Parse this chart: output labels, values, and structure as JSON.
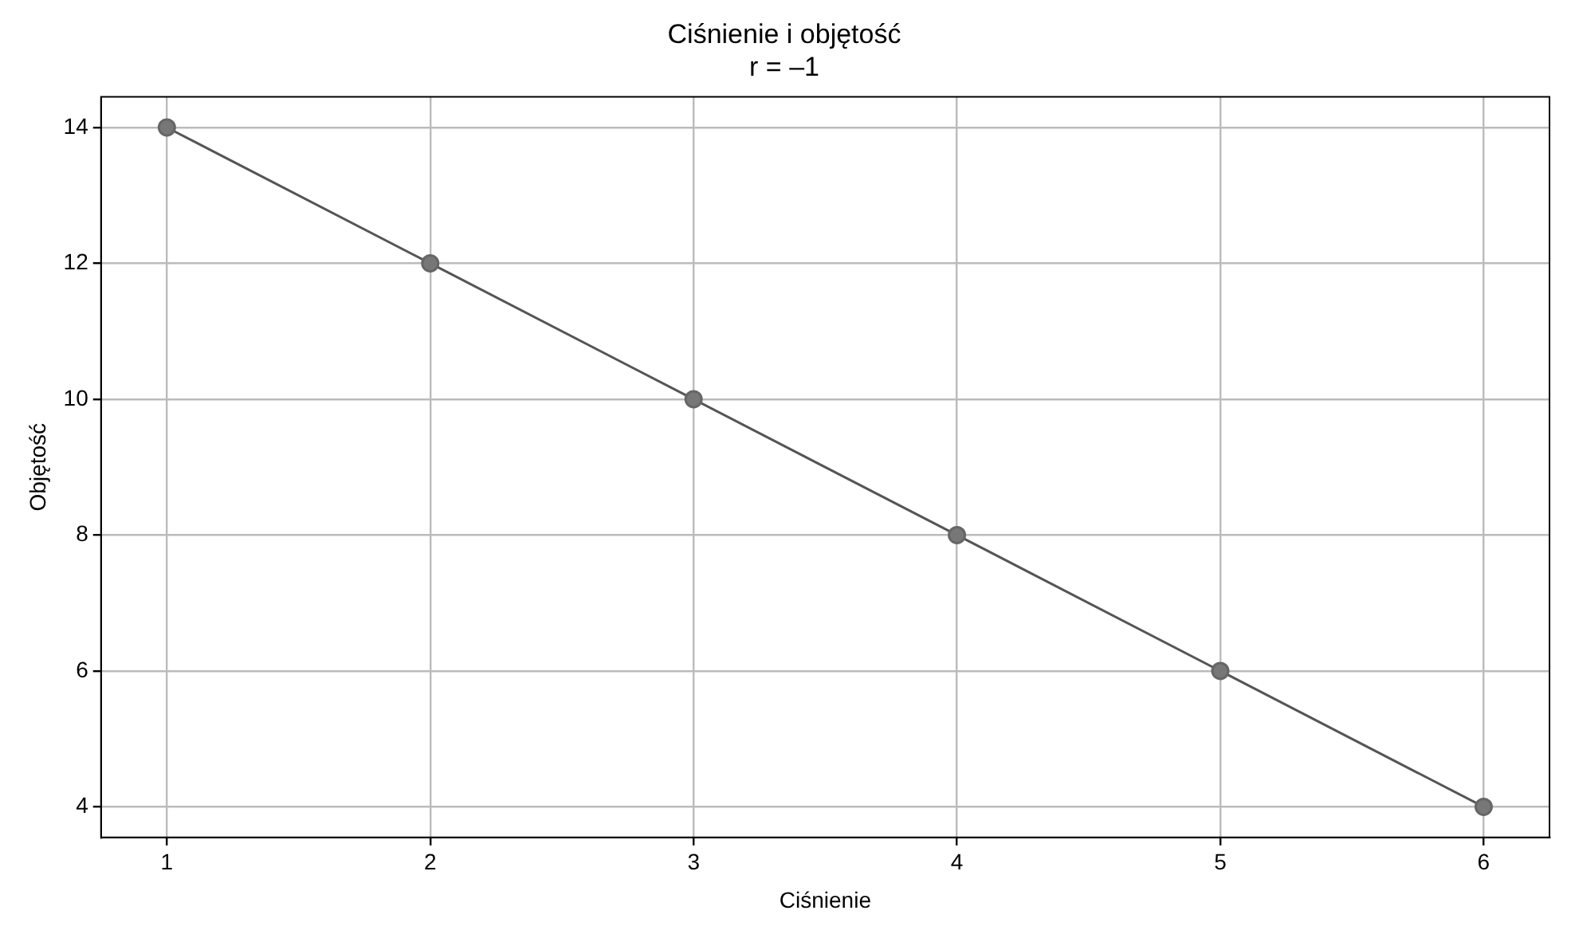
{
  "chart_data": {
    "type": "line",
    "title": "Ciśnienie i objętość",
    "subtitle": "r = –1",
    "xlabel": "Ciśnienie",
    "ylabel": "Objętość",
    "x": [
      1,
      2,
      3,
      4,
      5,
      6
    ],
    "series": [
      {
        "color": "#555555",
        "values": [
          14,
          12,
          10,
          8,
          6,
          4
        ]
      }
    ],
    "xlim": [
      0.75,
      6.25
    ],
    "xticks": [
      1,
      2,
      3,
      4,
      5,
      6
    ],
    "ylim": [
      3.55,
      14.45
    ],
    "yticks": [
      4,
      6,
      8,
      10,
      12,
      14
    ],
    "grid": true,
    "marker": "circle",
    "line_style": "solid",
    "legend": false
  }
}
